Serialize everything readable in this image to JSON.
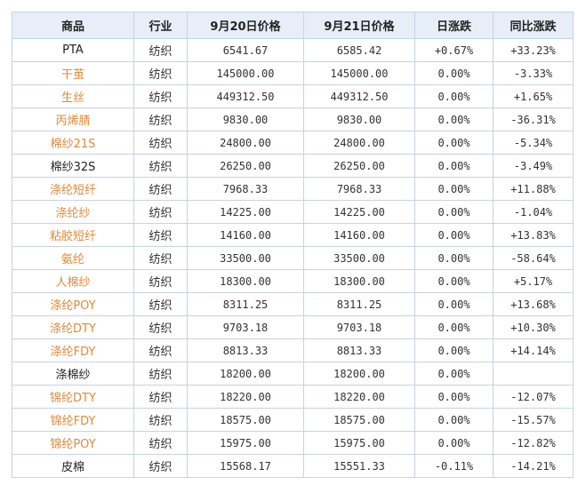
{
  "headers": [
    "商品",
    "行业",
    "9月20日价格",
    "9月21日价格",
    "日涨跌",
    "同比涨跌"
  ],
  "colors": {
    "orange_name": "#e0893a",
    "black_name": "#222222",
    "positive": "#c0201b",
    "negative": "#1c8a2c",
    "header_bg": "#e7eef8",
    "border": "#c5d3e6"
  },
  "rows": [
    {
      "name": "PTA",
      "name_color": "black",
      "industry": "纺织",
      "p20": "6541.67",
      "p21": "6585.42",
      "daily": "+0.67%",
      "yoy": "+33.23%"
    },
    {
      "name": "干茧",
      "name_color": "orange",
      "industry": "纺织",
      "p20": "145000.00",
      "p21": "145000.00",
      "daily": "0.00%",
      "yoy": "-3.33%"
    },
    {
      "name": "生丝",
      "name_color": "orange",
      "industry": "纺织",
      "p20": "449312.50",
      "p21": "449312.50",
      "daily": "0.00%",
      "yoy": "+1.65%"
    },
    {
      "name": "丙烯腈",
      "name_color": "orange",
      "industry": "纺织",
      "p20": "9830.00",
      "p21": "9830.00",
      "daily": "0.00%",
      "yoy": "-36.31%"
    },
    {
      "name": "棉纱21S",
      "name_color": "orange",
      "industry": "纺织",
      "p20": "24800.00",
      "p21": "24800.00",
      "daily": "0.00%",
      "yoy": "-5.34%"
    },
    {
      "name": "棉纱32S",
      "name_color": "black",
      "industry": "纺织",
      "p20": "26250.00",
      "p21": "26250.00",
      "daily": "0.00%",
      "yoy": "-3.49%"
    },
    {
      "name": "涤纶短纤",
      "name_color": "orange",
      "industry": "纺织",
      "p20": "7968.33",
      "p21": "7968.33",
      "daily": "0.00%",
      "yoy": "+11.88%"
    },
    {
      "name": "涤纶纱",
      "name_color": "orange",
      "industry": "纺织",
      "p20": "14225.00",
      "p21": "14225.00",
      "daily": "0.00%",
      "yoy": "-1.04%"
    },
    {
      "name": "粘胶短纤",
      "name_color": "orange",
      "industry": "纺织",
      "p20": "14160.00",
      "p21": "14160.00",
      "daily": "0.00%",
      "yoy": "+13.83%"
    },
    {
      "name": "氨纶",
      "name_color": "orange",
      "industry": "纺织",
      "p20": "33500.00",
      "p21": "33500.00",
      "daily": "0.00%",
      "yoy": "-58.64%"
    },
    {
      "name": "人棉纱",
      "name_color": "orange",
      "industry": "纺织",
      "p20": "18300.00",
      "p21": "18300.00",
      "daily": "0.00%",
      "yoy": "+5.17%"
    },
    {
      "name": "涤纶POY",
      "name_color": "orange",
      "industry": "纺织",
      "p20": "8311.25",
      "p21": "8311.25",
      "daily": "0.00%",
      "yoy": "+13.68%"
    },
    {
      "name": "涤纶DTY",
      "name_color": "orange",
      "industry": "纺织",
      "p20": "9703.18",
      "p21": "9703.18",
      "daily": "0.00%",
      "yoy": "+10.30%"
    },
    {
      "name": "涤纶FDY",
      "name_color": "orange",
      "industry": "纺织",
      "p20": "8813.33",
      "p21": "8813.33",
      "daily": "0.00%",
      "yoy": "+14.14%"
    },
    {
      "name": "涤棉纱",
      "name_color": "black",
      "industry": "纺织",
      "p20": "18200.00",
      "p21": "18200.00",
      "daily": "0.00%",
      "yoy": ""
    },
    {
      "name": "锦纶DTY",
      "name_color": "orange",
      "industry": "纺织",
      "p20": "18220.00",
      "p21": "18220.00",
      "daily": "0.00%",
      "yoy": "-12.07%"
    },
    {
      "name": "锦纶FDY",
      "name_color": "orange",
      "industry": "纺织",
      "p20": "18575.00",
      "p21": "18575.00",
      "daily": "0.00%",
      "yoy": "-15.57%"
    },
    {
      "name": "锦纶POY",
      "name_color": "orange",
      "industry": "纺织",
      "p20": "15975.00",
      "p21": "15975.00",
      "daily": "0.00%",
      "yoy": "-12.82%"
    },
    {
      "name": "皮棉",
      "name_color": "black",
      "industry": "纺织",
      "p20": "15568.17",
      "p21": "15551.33",
      "daily": "-0.11%",
      "yoy": "-14.21%"
    }
  ]
}
